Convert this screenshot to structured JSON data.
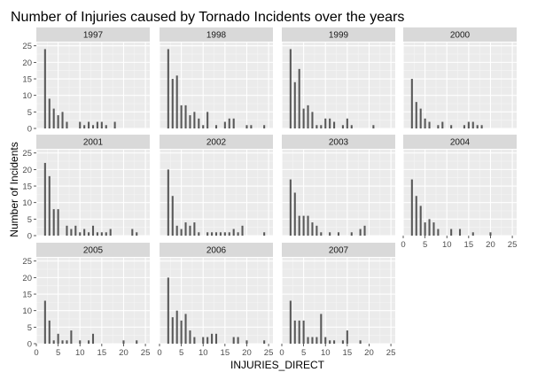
{
  "chart_data": {
    "type": "bar",
    "title": "Number of Injuries caused by Tornado Incidents over the years",
    "xlabel": "INJURIES_DIRECT",
    "ylabel": "Number of Incidents",
    "xlim": [
      0,
      26
    ],
    "ylim": [
      0,
      26
    ],
    "x_ticks": [
      0,
      5,
      10,
      15,
      20,
      25
    ],
    "y_ticks": [
      0,
      5,
      10,
      15,
      20,
      25
    ],
    "grid": true,
    "colors": {
      "panel_background": "#ebebeb",
      "strip_background": "#d9d9d9",
      "grid_major": "#ffffff",
      "grid_minor": "#f5f5f5",
      "bar": "#595959"
    },
    "panels": [
      {
        "year": "1997",
        "bars": [
          [
            2,
            24
          ],
          [
            3,
            9
          ],
          [
            4,
            6
          ],
          [
            5,
            4
          ],
          [
            6,
            5
          ],
          [
            7,
            2
          ],
          [
            10,
            2
          ],
          [
            11,
            1
          ],
          [
            12,
            2
          ],
          [
            13,
            1
          ],
          [
            14,
            2
          ],
          [
            15,
            2
          ],
          [
            16,
            1
          ],
          [
            18,
            2
          ]
        ]
      },
      {
        "year": "1998",
        "bars": [
          [
            2,
            24
          ],
          [
            3,
            15
          ],
          [
            4,
            16
          ],
          [
            5,
            7
          ],
          [
            6,
            7
          ],
          [
            7,
            4
          ],
          [
            8,
            5
          ],
          [
            9,
            3
          ],
          [
            10,
            1
          ],
          [
            11,
            5
          ],
          [
            13,
            1
          ],
          [
            15,
            2
          ],
          [
            16,
            3
          ],
          [
            17,
            3
          ],
          [
            20,
            1
          ],
          [
            21,
            1
          ],
          [
            24,
            1
          ]
        ]
      },
      {
        "year": "1999",
        "bars": [
          [
            2,
            24
          ],
          [
            3,
            14
          ],
          [
            4,
            18
          ],
          [
            5,
            6
          ],
          [
            6,
            7
          ],
          [
            7,
            5
          ],
          [
            8,
            1
          ],
          [
            9,
            1
          ],
          [
            10,
            3
          ],
          [
            11,
            3
          ],
          [
            12,
            2
          ],
          [
            14,
            1
          ],
          [
            15,
            3
          ],
          [
            16,
            1
          ],
          [
            21,
            1
          ]
        ]
      },
      {
        "year": "2000",
        "bars": [
          [
            2,
            15
          ],
          [
            3,
            8
          ],
          [
            4,
            6
          ],
          [
            5,
            3
          ],
          [
            6,
            2
          ],
          [
            8,
            1
          ],
          [
            9,
            2
          ],
          [
            11,
            1
          ],
          [
            14,
            1
          ],
          [
            15,
            2
          ],
          [
            16,
            2
          ],
          [
            17,
            1
          ],
          [
            18,
            1
          ]
        ]
      },
      {
        "year": "2001",
        "bars": [
          [
            2,
            22
          ],
          [
            3,
            18
          ],
          [
            4,
            8
          ],
          [
            5,
            8
          ],
          [
            7,
            3
          ],
          [
            8,
            2
          ],
          [
            9,
            3
          ],
          [
            10,
            1
          ],
          [
            11,
            2
          ],
          [
            12,
            1
          ],
          [
            13,
            3
          ],
          [
            14,
            1
          ],
          [
            15,
            1
          ],
          [
            16,
            1
          ],
          [
            17,
            2
          ],
          [
            22,
            2
          ],
          [
            23,
            1
          ]
        ]
      },
      {
        "year": "2002",
        "bars": [
          [
            2,
            20
          ],
          [
            3,
            12
          ],
          [
            4,
            3
          ],
          [
            5,
            2
          ],
          [
            6,
            4
          ],
          [
            7,
            3
          ],
          [
            8,
            4
          ],
          [
            9,
            1
          ],
          [
            11,
            1
          ],
          [
            12,
            1
          ],
          [
            13,
            1
          ],
          [
            14,
            1
          ],
          [
            15,
            1
          ],
          [
            16,
            1
          ],
          [
            17,
            2
          ],
          [
            18,
            1
          ],
          [
            19,
            3
          ],
          [
            24,
            1
          ]
        ]
      },
      {
        "year": "2003",
        "bars": [
          [
            2,
            17
          ],
          [
            3,
            13
          ],
          [
            4,
            6
          ],
          [
            5,
            6
          ],
          [
            6,
            6
          ],
          [
            7,
            4
          ],
          [
            8,
            3
          ],
          [
            9,
            1
          ],
          [
            11,
            1
          ],
          [
            13,
            1
          ],
          [
            16,
            1
          ],
          [
            18,
            2
          ],
          [
            19,
            3
          ]
        ]
      },
      {
        "year": "2004",
        "bars": [
          [
            2,
            17
          ],
          [
            3,
            12
          ],
          [
            4,
            9
          ],
          [
            5,
            4
          ],
          [
            6,
            5
          ],
          [
            7,
            4
          ],
          [
            8,
            2
          ],
          [
            11,
            2
          ],
          [
            13,
            2
          ],
          [
            16,
            1
          ],
          [
            20,
            1
          ]
        ]
      },
      {
        "year": "2005",
        "bars": [
          [
            2,
            13
          ],
          [
            3,
            7
          ],
          [
            4,
            1
          ],
          [
            5,
            3
          ],
          [
            6,
            1
          ],
          [
            7,
            1
          ],
          [
            8,
            4
          ],
          [
            10,
            1
          ],
          [
            12,
            1
          ],
          [
            13,
            3
          ],
          [
            20,
            1
          ],
          [
            23,
            1
          ]
        ]
      },
      {
        "year": "2006",
        "bars": [
          [
            2,
            20
          ],
          [
            3,
            8
          ],
          [
            4,
            10
          ],
          [
            5,
            7
          ],
          [
            6,
            9
          ],
          [
            7,
            4
          ],
          [
            8,
            2
          ],
          [
            10,
            2
          ],
          [
            11,
            2
          ],
          [
            12,
            3
          ],
          [
            13,
            3
          ],
          [
            17,
            2
          ],
          [
            18,
            2
          ],
          [
            20,
            1
          ],
          [
            24,
            1
          ]
        ]
      },
      {
        "year": "2007",
        "bars": [
          [
            2,
            13
          ],
          [
            3,
            7
          ],
          [
            4,
            7
          ],
          [
            5,
            7
          ],
          [
            6,
            2
          ],
          [
            7,
            2
          ],
          [
            8,
            2
          ],
          [
            9,
            9
          ],
          [
            10,
            2
          ],
          [
            11,
            1
          ],
          [
            12,
            1
          ],
          [
            14,
            1
          ],
          [
            15,
            4
          ],
          [
            18,
            1
          ]
        ]
      }
    ]
  }
}
